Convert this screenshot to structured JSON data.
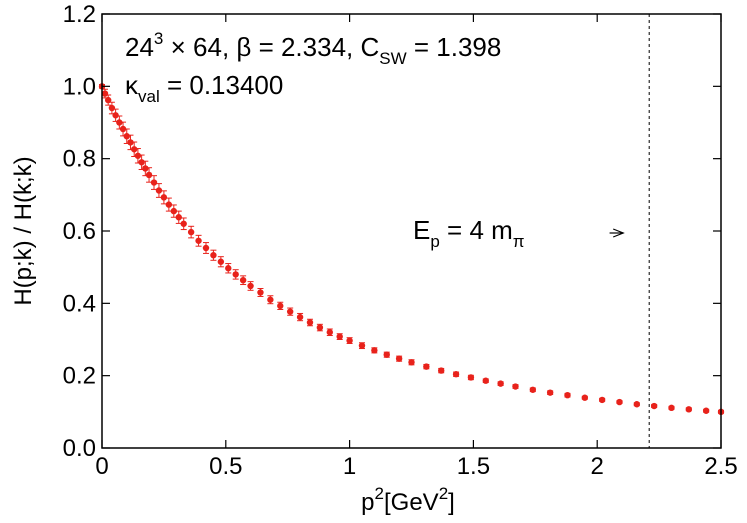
{
  "chart_data": {
    "type": "scatter",
    "xlabel": {
      "base": "p",
      "sup": "2",
      "unit_open": "[GeV",
      "unit_sup": "2",
      "unit_close": "]"
    },
    "ylabel": "H(p;k) / H(k;k)",
    "xlim": [
      0,
      2.5
    ],
    "ylim": [
      0,
      1.2
    ],
    "xticks": [
      0,
      0.5,
      1,
      1.5,
      2,
      2.5
    ],
    "xtick_labels": [
      "0",
      "0.5",
      "1",
      "1.5",
      "2",
      "2.5"
    ],
    "yticks": [
      0,
      0.2,
      0.4,
      0.6,
      0.8,
      1.0,
      1.2
    ],
    "ytick_labels": [
      "0.0",
      "0.2",
      "0.4",
      "0.6",
      "0.8",
      "1.0",
      "1.2"
    ],
    "grid": false,
    "series_color": "#e8221b",
    "annotations": {
      "lattice": {
        "base": "24",
        "sup": "3",
        "rest1": " × 64, β = 2.334, C",
        "sub": "SW",
        "rest2": " = 1.398"
      },
      "kappa": {
        "base": "κ",
        "sub": "val",
        "rest": " = 0.13400"
      },
      "energy": {
        "base": "E",
        "sub": "p",
        "mid": " = 4 m",
        "sub2": "π"
      }
    },
    "vline_x": 2.21,
    "arrow": {
      "x_start": 2.05,
      "x_end": 2.21,
      "y": 0.6
    },
    "series": [
      {
        "x": [
          0.0,
          0.012,
          0.025,
          0.04,
          0.055,
          0.07,
          0.085,
          0.1,
          0.115,
          0.13,
          0.145,
          0.16,
          0.175,
          0.19,
          0.21,
          0.23,
          0.25,
          0.27,
          0.29,
          0.31,
          0.33,
          0.36,
          0.39,
          0.42,
          0.45,
          0.48,
          0.51,
          0.54,
          0.57,
          0.6,
          0.64,
          0.68,
          0.72,
          0.76,
          0.8,
          0.84,
          0.88,
          0.92,
          0.96,
          1.0,
          1.05,
          1.1,
          1.15,
          1.2,
          1.25,
          1.31,
          1.37,
          1.43,
          1.49,
          1.55,
          1.61,
          1.67,
          1.74,
          1.81,
          1.88,
          1.95,
          2.02,
          2.09,
          2.16,
          2.23,
          2.3,
          2.37,
          2.44,
          2.5
        ],
        "y": [
          1.0,
          0.98,
          0.962,
          0.94,
          0.92,
          0.9,
          0.882,
          0.862,
          0.845,
          0.826,
          0.808,
          0.79,
          0.773,
          0.755,
          0.734,
          0.712,
          0.693,
          0.673,
          0.655,
          0.638,
          0.62,
          0.597,
          0.573,
          0.553,
          0.533,
          0.515,
          0.497,
          0.48,
          0.464,
          0.448,
          0.43,
          0.41,
          0.393,
          0.377,
          0.362,
          0.347,
          0.333,
          0.32,
          0.308,
          0.297,
          0.283,
          0.27,
          0.258,
          0.247,
          0.237,
          0.225,
          0.214,
          0.204,
          0.195,
          0.186,
          0.178,
          0.17,
          0.161,
          0.153,
          0.146,
          0.139,
          0.133,
          0.127,
          0.121,
          0.116,
          0.111,
          0.107,
          0.103,
          0.1
        ],
        "err": [
          0.005,
          0.012,
          0.014,
          0.016,
          0.017,
          0.018,
          0.019,
          0.02,
          0.02,
          0.02,
          0.02,
          0.02,
          0.02,
          0.02,
          0.019,
          0.019,
          0.018,
          0.018,
          0.017,
          0.017,
          0.016,
          0.016,
          0.015,
          0.015,
          0.014,
          0.014,
          0.013,
          0.013,
          0.012,
          0.012,
          0.011,
          0.011,
          0.01,
          0.01,
          0.01,
          0.009,
          0.009,
          0.009,
          0.008,
          0.008,
          0.008,
          0.007,
          0.007,
          0.007,
          0.007,
          0.006,
          0.006,
          0.006,
          0.006,
          0.005,
          0.005,
          0.005,
          0.005,
          0.005,
          0.005,
          0.004,
          0.004,
          0.004,
          0.004,
          0.004,
          0.004,
          0.004,
          0.004,
          0.004
        ]
      }
    ]
  }
}
